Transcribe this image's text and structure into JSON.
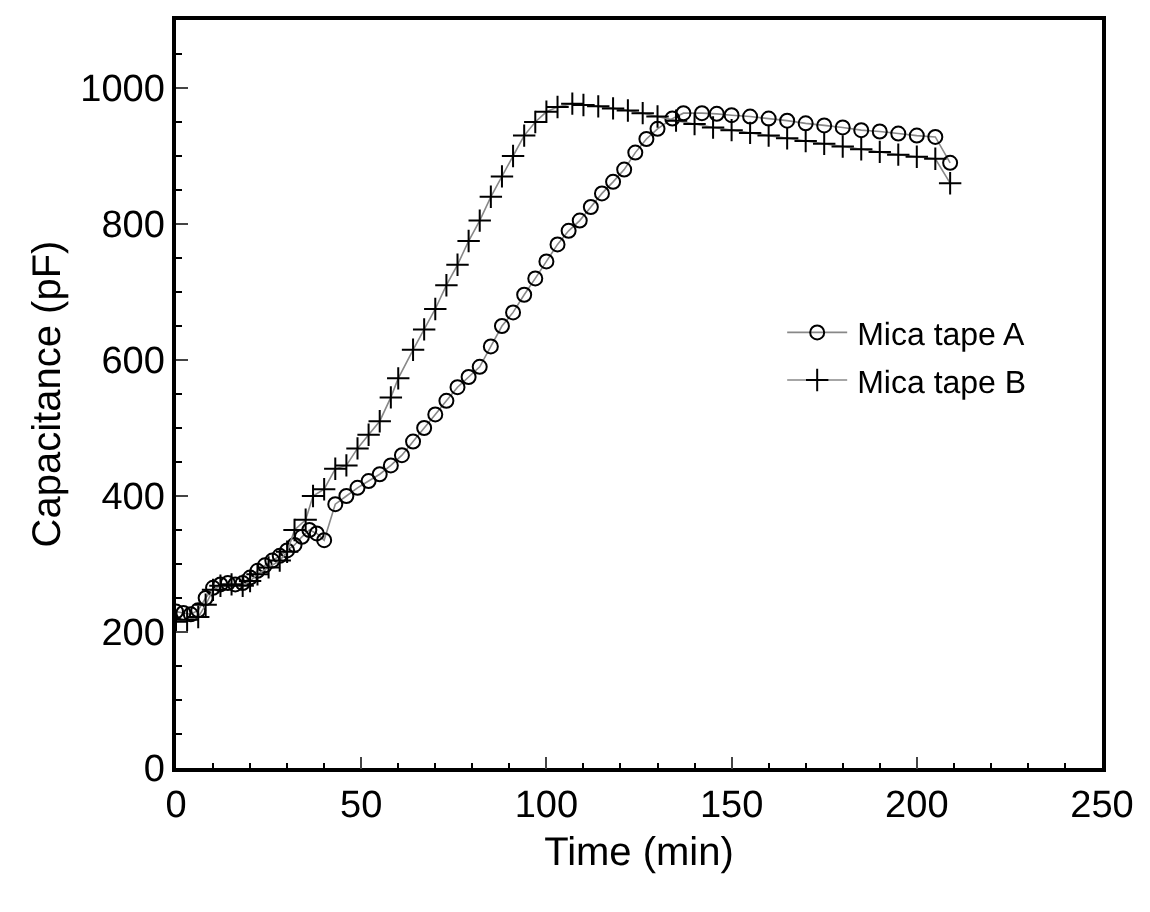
{
  "chart_data": {
    "type": "line",
    "xlabel": "Time (min)",
    "ylabel": "Capacitance (pF)",
    "xlim": [
      0,
      250
    ],
    "xticks": [
      0,
      50,
      100,
      150,
      200,
      250
    ],
    "ylim": [
      0,
      1100
    ],
    "yticks": [
      0,
      200,
      400,
      600,
      800,
      1000
    ],
    "legend": "right",
    "line_style": "solid",
    "series": [
      {
        "name": "Mica tape A",
        "color": "#000000",
        "marker": "circle",
        "x": [
          0,
          2,
          4,
          6,
          8,
          10,
          12,
          14,
          16,
          18,
          20,
          22,
          24,
          26,
          28,
          30,
          32,
          34,
          36,
          38,
          40,
          43,
          46,
          49,
          52,
          55,
          58,
          61,
          64,
          67,
          70,
          73,
          76,
          79,
          82,
          85,
          88,
          91,
          94,
          97,
          100,
          103,
          106,
          109,
          112,
          115,
          118,
          121,
          124,
          127,
          130,
          134,
          137,
          142,
          146,
          150,
          155,
          160,
          165,
          170,
          175,
          180,
          185,
          190,
          195,
          200,
          205,
          209
        ],
        "values": [
          230,
          228,
          226,
          232,
          250,
          265,
          270,
          272,
          270,
          272,
          280,
          290,
          298,
          305,
          312,
          320,
          328,
          340,
          350,
          345,
          335,
          388,
          400,
          412,
          422,
          432,
          445,
          460,
          480,
          500,
          520,
          540,
          560,
          575,
          590,
          620,
          650,
          670,
          696,
          720,
          745,
          770,
          790,
          805,
          825,
          845,
          862,
          880,
          905,
          925,
          940,
          955,
          963,
          963,
          962,
          960,
          958,
          955,
          952,
          948,
          945,
          942,
          938,
          936,
          933,
          930,
          928,
          890
        ]
      },
      {
        "name": "Mica tape B",
        "color": "#000000",
        "marker": "cross",
        "x": [
          0,
          3,
          6,
          8,
          10,
          12,
          15,
          18,
          20,
          22,
          25,
          28,
          30,
          32,
          35,
          37,
          40,
          43,
          46,
          49,
          52,
          55,
          58,
          60,
          64,
          67,
          70,
          73,
          76,
          79,
          82,
          85,
          88,
          91,
          94,
          97,
          100,
          103,
          107,
          110,
          114,
          118,
          122,
          126,
          130,
          135,
          140,
          145,
          150,
          155,
          160,
          165,
          170,
          175,
          180,
          185,
          190,
          195,
          200,
          205,
          209
        ],
        "values": [
          215,
          218,
          222,
          240,
          262,
          268,
          270,
          268,
          275,
          285,
          295,
          305,
          318,
          350,
          365,
          400,
          410,
          440,
          445,
          470,
          490,
          510,
          545,
          573,
          615,
          645,
          675,
          710,
          740,
          775,
          805,
          840,
          870,
          900,
          930,
          950,
          965,
          972,
          977,
          975,
          973,
          970,
          967,
          963,
          958,
          952,
          947,
          942,
          938,
          934,
          930,
          926,
          922,
          918,
          914,
          910,
          906,
          902,
          899,
          896,
          860
        ]
      }
    ]
  }
}
